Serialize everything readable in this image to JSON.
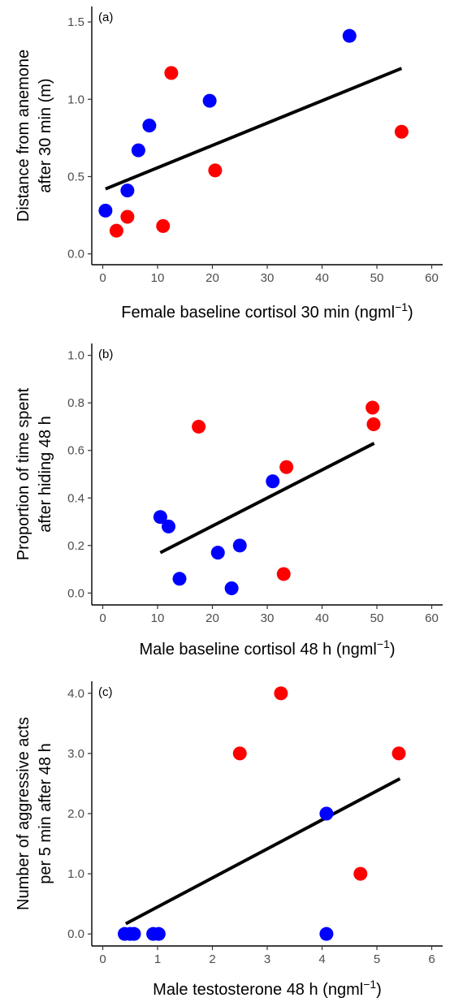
{
  "colors": {
    "red": "#ff0000",
    "blue": "#0000ff",
    "fit_line": "#000000"
  },
  "chart_data": [
    {
      "type": "scatter",
      "panel_label": "(a)",
      "xlabel": "Female baseline cortisol 30 min (ngml",
      "xlabel_sup": "−1",
      "xlabel_close": ")",
      "ylabel_lines": [
        "Distance from anemone",
        "after 30 min (m)"
      ],
      "xlim": [
        -2,
        62
      ],
      "ylim": [
        -0.07,
        1.6
      ],
      "xticks": [
        0,
        10,
        20,
        30,
        40,
        50,
        60
      ],
      "xtick_labels": [
        "0",
        "10",
        "20",
        "30",
        "40",
        "50",
        "60"
      ],
      "yticks": [
        0,
        0.5,
        1.0,
        1.5
      ],
      "ytick_labels": [
        "0.0",
        "0.5",
        "1.0",
        "1.5"
      ],
      "grid": false,
      "series": [
        {
          "color": "red",
          "points": [
            [
              2.5,
              0.15
            ],
            [
              4.5,
              0.24
            ],
            [
              11,
              0.18
            ],
            [
              12.5,
              1.17
            ],
            [
              20.5,
              0.54
            ],
            [
              54.5,
              0.79
            ]
          ]
        },
        {
          "color": "blue",
          "points": [
            [
              0.5,
              0.28
            ],
            [
              4.5,
              0.41
            ],
            [
              6.5,
              0.67
            ],
            [
              8.5,
              0.83
            ],
            [
              19.5,
              0.99
            ],
            [
              45,
              1.41
            ]
          ]
        }
      ],
      "fit_line": {
        "x": [
          0.5,
          54.5
        ],
        "y": [
          0.42,
          1.2
        ]
      }
    },
    {
      "type": "scatter",
      "panel_label": "(b)",
      "xlabel": "Male baseline cortisol 48 h (ngml",
      "xlabel_sup": "−1",
      "xlabel_close": ")",
      "ylabel_lines": [
        "Proportion of time spent",
        "after hiding 48 h"
      ],
      "xlim": [
        -2,
        62
      ],
      "ylim": [
        -0.05,
        1.05
      ],
      "xticks": [
        0,
        10,
        20,
        30,
        40,
        50,
        60
      ],
      "xtick_labels": [
        "0",
        "10",
        "20",
        "30",
        "40",
        "50",
        "60"
      ],
      "yticks": [
        0,
        0.2,
        0.4,
        0.6,
        0.8,
        1.0
      ],
      "ytick_labels": [
        "0.0",
        "0.2",
        "0.4",
        "0.6",
        "0.8",
        "1.0"
      ],
      "grid": false,
      "series": [
        {
          "color": "red",
          "points": [
            [
              17.5,
              0.7
            ],
            [
              33.5,
              0.53
            ],
            [
              33,
              0.08
            ],
            [
              49.2,
              0.78
            ],
            [
              49.4,
              0.71
            ]
          ]
        },
        {
          "color": "blue",
          "points": [
            [
              10.5,
              0.32
            ],
            [
              12,
              0.28
            ],
            [
              14,
              0.06
            ],
            [
              21,
              0.17
            ],
            [
              23.5,
              0.02
            ],
            [
              25,
              0.2
            ],
            [
              31,
              0.47
            ]
          ]
        }
      ],
      "fit_line": {
        "x": [
          10.5,
          49.5
        ],
        "y": [
          0.17,
          0.63
        ]
      }
    },
    {
      "type": "scatter",
      "panel_label": "(c)",
      "xlabel": "Male testosterone 48 h (ngml",
      "xlabel_sup": "−1",
      "xlabel_close": ")",
      "ylabel_lines": [
        "Number of aggressive acts",
        "per 5 min after 48 h"
      ],
      "xlim": [
        -0.2,
        6.2
      ],
      "ylim": [
        -0.2,
        4.2
      ],
      "xticks": [
        0,
        1,
        2,
        3,
        4,
        5,
        6
      ],
      "xtick_labels": [
        "0",
        "1",
        "2",
        "3",
        "4",
        "5",
        "6"
      ],
      "yticks": [
        0,
        1,
        2,
        3,
        4
      ],
      "ytick_labels": [
        "0.0",
        "1.0",
        "2.0",
        "3.0",
        "4.0"
      ],
      "grid": false,
      "series": [
        {
          "color": "red",
          "points": [
            [
              2.5,
              3
            ],
            [
              3.25,
              4
            ],
            [
              4.7,
              1
            ],
            [
              5.4,
              3
            ]
          ]
        },
        {
          "color": "blue",
          "points": [
            [
              0.4,
              0
            ],
            [
              0.5,
              0
            ],
            [
              0.57,
              0
            ],
            [
              0.92,
              0
            ],
            [
              1.02,
              0
            ],
            [
              4.08,
              0
            ],
            [
              4.08,
              2
            ]
          ]
        }
      ],
      "fit_line": {
        "x": [
          0.42,
          5.42
        ],
        "y": [
          0.17,
          2.58
        ]
      }
    }
  ]
}
